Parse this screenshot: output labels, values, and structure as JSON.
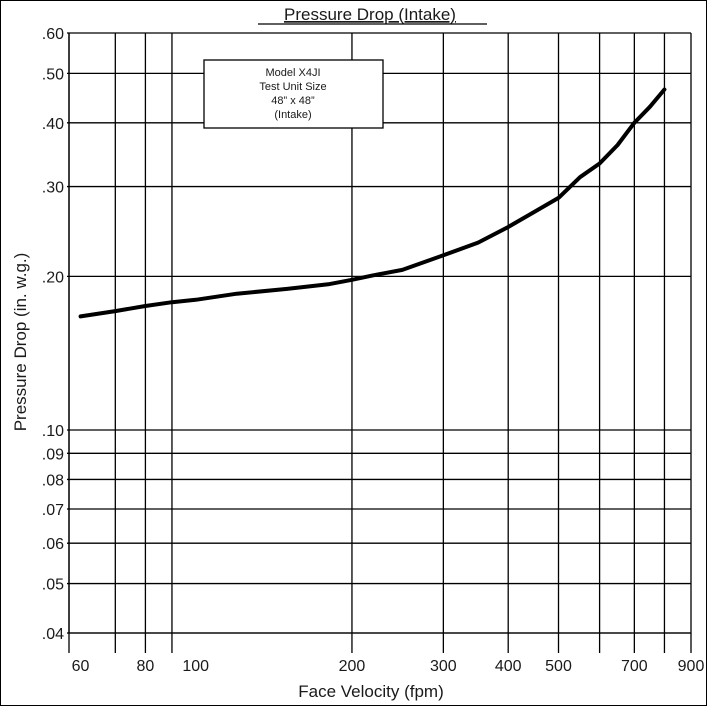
{
  "chart_data": {
    "type": "line",
    "title": "Pressure Drop (Intake)",
    "xlabel": "Face Velocity (fpm)",
    "ylabel": "Pressure Drop (in. w.g.)",
    "x_scale": "log",
    "y_scale": "log",
    "xlim": [
      57,
      900
    ],
    "ylim": [
      0.04,
      0.6
    ],
    "grid": true,
    "x_gridlines": [
      57,
      70,
      80,
      90,
      200,
      300,
      400,
      500,
      600,
      700,
      800,
      900
    ],
    "y_gridlines": [
      0.04,
      0.05,
      0.06,
      0.07,
      0.08,
      0.09,
      0.1,
      0.2,
      0.3,
      0.4,
      0.5,
      0.6
    ],
    "x_ticks": [
      {
        "value": 60,
        "label": "60"
      },
      {
        "value": 80,
        "label": "80"
      },
      {
        "value": 100,
        "label": "100"
      },
      {
        "value": 200,
        "label": "200"
      },
      {
        "value": 300,
        "label": "300"
      },
      {
        "value": 400,
        "label": "400"
      },
      {
        "value": 500,
        "label": "500"
      },
      {
        "value": 700,
        "label": "700"
      },
      {
        "value": 900,
        "label": "900"
      }
    ],
    "y_ticks": [
      {
        "value": 0.6,
        "label": ".60"
      },
      {
        "value": 0.5,
        "label": ".50"
      },
      {
        "value": 0.4,
        "label": ".40"
      },
      {
        "value": 0.3,
        "label": ".30"
      },
      {
        "value": 0.2,
        "label": ".20"
      },
      {
        "value": 0.1,
        "label": ".10"
      },
      {
        "value": 0.09,
        "label": ".09"
      },
      {
        "value": 0.08,
        "label": ".08"
      },
      {
        "value": 0.07,
        "label": ".07"
      },
      {
        "value": 0.06,
        "label": ".06"
      },
      {
        "value": 0.05,
        "label": ".05"
      },
      {
        "value": 0.04,
        "label": ".04"
      }
    ],
    "series": [
      {
        "x": [
          60,
          70,
          80,
          90,
          100,
          120,
          150,
          180,
          200,
          220,
          250,
          300,
          350,
          400,
          450,
          500,
          550,
          600,
          650,
          700,
          750,
          800
        ],
        "y": [
          0.167,
          0.171,
          0.175,
          0.178,
          0.18,
          0.185,
          0.189,
          0.193,
          0.197,
          0.201,
          0.206,
          0.22,
          0.233,
          0.25,
          0.268,
          0.285,
          0.313,
          0.333,
          0.362,
          0.4,
          0.43,
          0.465
        ]
      }
    ],
    "annotation": [
      "Model X4JI",
      "Test Unit Size",
      "48” x 48”",
      "(Intake)"
    ]
  }
}
